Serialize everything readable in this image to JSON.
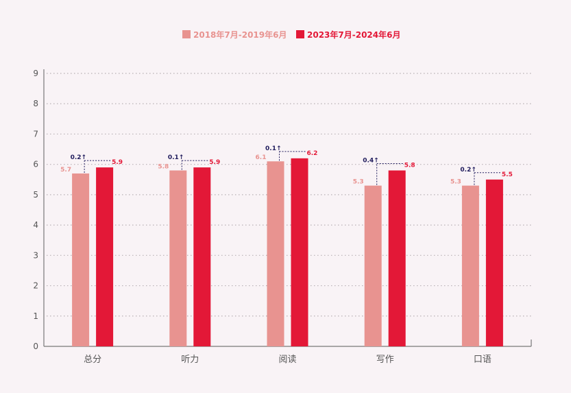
{
  "chart_data": {
    "type": "bar",
    "categories": [
      "总分",
      "听力",
      "阅读",
      "写作",
      "口语"
    ],
    "series": [
      {
        "name": "2018年7月-2019年6月",
        "values": [
          5.7,
          5.8,
          6.1,
          5.3,
          5.3
        ],
        "value_labels": [
          "5.7",
          "5.8",
          "6.1",
          "5.3",
          "5.3"
        ],
        "color": "#e89390"
      },
      {
        "name": "2023年7月-2024年6月",
        "values": [
          5.9,
          5.9,
          6.2,
          5.8,
          5.5
        ],
        "value_labels": [
          "5.9",
          "5.9",
          "6.2",
          "5.8",
          "5.5"
        ],
        "color": "#e31837"
      }
    ],
    "change_labels": [
      "0.2↑",
      "0.1↑",
      "0.1↑",
      "0.4↑",
      "0.2↑"
    ],
    "change_color": "#1f1b5c",
    "y_ticks": [
      "0",
      "1",
      "2",
      "3",
      "4",
      "5",
      "6",
      "7",
      "8",
      "9"
    ],
    "ylim": [
      0,
      9
    ],
    "grid": true,
    "grid_style": "dotted",
    "legend_position": "top-center",
    "axis_color": "#777777",
    "tick_label_color": "#555555"
  }
}
